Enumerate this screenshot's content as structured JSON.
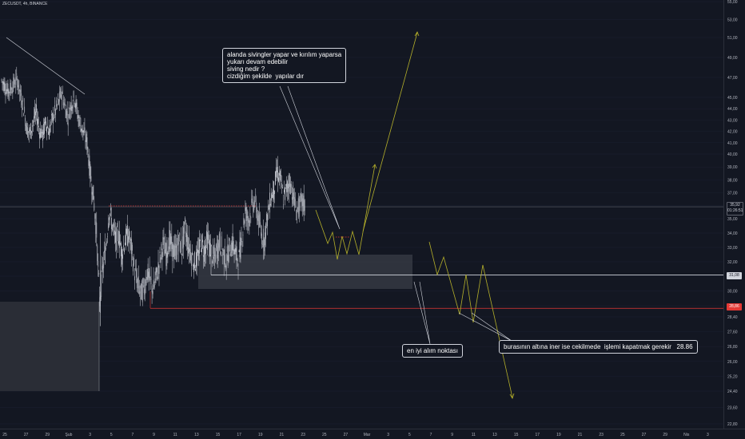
{
  "symbol": "ZECUSDT, 4h, BINANCE",
  "colors": {
    "background": "#131722",
    "candle": "#d1d4dc",
    "support_line": "#d1d4dc",
    "stop_line": "#e53935",
    "projection": "#b5b02a",
    "zone": "#3a3d47",
    "resistance_dots": "#e53935"
  },
  "chart_data": {
    "type": "candlestick",
    "title": "",
    "y_axis": {
      "min": 22.4,
      "max": 55.0,
      "ticks": [
        "55,00",
        "53,00",
        "51,00",
        "49,00",
        "47,00",
        "45,00",
        "44,00",
        "43,00",
        "42,00",
        "41,00",
        "40,00",
        "39,00",
        "38,00",
        "37,00",
        "36,00",
        "35,00",
        "34,00",
        "33,00",
        "32,00",
        "31,00",
        "30,00",
        "29,00",
        "28,40",
        "27,60",
        "26,80",
        "26,00",
        "25,20",
        "24,40",
        "23,60",
        "22,80"
      ],
      "tick_values": [
        55,
        53,
        51,
        49,
        47,
        45,
        44,
        43,
        42,
        41,
        40,
        39,
        38,
        37,
        36,
        35,
        34,
        33,
        32,
        31,
        30,
        29,
        28.4,
        27.6,
        26.8,
        26.0,
        25.2,
        24.4,
        23.6,
        22.8
      ]
    },
    "x_axis": {
      "ticks": [
        "25",
        "27",
        "29",
        "Şub",
        "3",
        "5",
        "7",
        "9",
        "11",
        "13",
        "15",
        "17",
        "19",
        "21",
        "23",
        "25",
        "27",
        "Mar",
        "3",
        "5",
        "7",
        "9",
        "11",
        "13",
        "15",
        "17",
        "19",
        "21",
        "23",
        "25",
        "27",
        "29",
        "Nis",
        "3"
      ]
    },
    "price_labels": [
      {
        "value": 35.92,
        "text": "35,92",
        "sub": "01:26:51"
      },
      {
        "value": 31.08,
        "text": "31,08"
      },
      {
        "value": 28.86,
        "text": "28,86"
      }
    ],
    "levels": {
      "current_price": 35.92,
      "support": 31.08,
      "stop": 28.86,
      "resistance": 35.9
    },
    "close_path": [
      [
        0,
        46.7
      ],
      [
        4,
        46.2
      ],
      [
        8,
        45.6
      ],
      [
        12,
        45.9
      ],
      [
        16,
        46.4
      ],
      [
        20,
        46.8
      ],
      [
        24,
        45.2
      ],
      [
        28,
        44.1
      ],
      [
        32,
        42.3
      ],
      [
        36,
        41.8
      ],
      [
        40,
        42.9
      ],
      [
        44,
        43.6
      ],
      [
        48,
        42.1
      ],
      [
        52,
        41.7
      ],
      [
        56,
        42.9
      ],
      [
        60,
        41.9
      ],
      [
        64,
        43.1
      ],
      [
        68,
        43.8
      ],
      [
        72,
        44.6
      ],
      [
        76,
        45.5
      ],
      [
        80,
        44.2
      ],
      [
        84,
        43.3
      ],
      [
        88,
        44.4
      ],
      [
        92,
        45.1
      ],
      [
        96,
        43.5
      ],
      [
        100,
        42.6
      ],
      [
        104,
        41.8
      ],
      [
        108,
        41.0
      ],
      [
        112,
        38.5
      ],
      [
        116,
        36.8
      ],
      [
        120,
        34.0
      ],
      [
        124,
        29.3
      ],
      [
        128,
        31.5
      ],
      [
        132,
        33.0
      ],
      [
        136,
        35.6
      ],
      [
        140,
        34.6
      ],
      [
        144,
        33.5
      ],
      [
        148,
        33.9
      ],
      [
        152,
        32.6
      ],
      [
        156,
        33.5
      ],
      [
        160,
        33.9
      ],
      [
        164,
        32.9
      ],
      [
        168,
        31.3
      ],
      [
        172,
        30.5
      ],
      [
        176,
        29.8
      ],
      [
        180,
        30.2
      ],
      [
        184,
        31.3
      ],
      [
        188,
        30.6
      ],
      [
        192,
        30.1
      ],
      [
        196,
        31.1
      ],
      [
        200,
        32.1
      ],
      [
        204,
        33.2
      ],
      [
        208,
        32.5
      ],
      [
        212,
        33.6
      ],
      [
        216,
        32.8
      ],
      [
        220,
        32.6
      ],
      [
        224,
        33.5
      ],
      [
        228,
        32.9
      ],
      [
        232,
        34.4
      ],
      [
        236,
        33.2
      ],
      [
        240,
        32.5
      ],
      [
        244,
        31.9
      ],
      [
        248,
        32.3
      ],
      [
        252,
        33.4
      ],
      [
        256,
        32.8
      ],
      [
        260,
        33.6
      ],
      [
        264,
        32.9
      ],
      [
        268,
        32.1
      ],
      [
        272,
        32.9
      ],
      [
        276,
        33.4
      ],
      [
        280,
        32.6
      ],
      [
        284,
        32.1
      ],
      [
        288,
        32.9
      ],
      [
        292,
        33.3
      ],
      [
        296,
        32.4
      ],
      [
        300,
        32.2
      ],
      [
        304,
        33.8
      ],
      [
        308,
        35.6
      ],
      [
        312,
        34.9
      ],
      [
        316,
        35.9
      ],
      [
        320,
        36.4
      ],
      [
        324,
        35.2
      ],
      [
        328,
        34.0
      ],
      [
        332,
        33.5
      ],
      [
        336,
        35.1
      ],
      [
        340,
        36.6
      ],
      [
        344,
        37.2
      ],
      [
        348,
        38.6
      ],
      [
        352,
        38.1
      ],
      [
        356,
        36.6
      ],
      [
        360,
        37.3
      ],
      [
        364,
        37.9
      ],
      [
        368,
        36.9
      ],
      [
        372,
        35.6
      ],
      [
        376,
        35.9
      ],
      [
        380,
        36.3
      ],
      [
        384,
        35.9
      ]
    ],
    "dates_note": "x values are candle indices (4h candles), y values are closing prices in USDT",
    "annotations": [
      {
        "text": "alanda sivingler yapar ve kırılım yaparsa\nyukarı devam edebilir\nsiving nedir ?\ncizdiğim şekilde  yapılar dır"
      },
      {
        "text": "en iyi alım noktası"
      },
      {
        "text": "burasının altına iner ise cekilmede  işlemi kapatmak gerekir   28.86"
      }
    ]
  }
}
